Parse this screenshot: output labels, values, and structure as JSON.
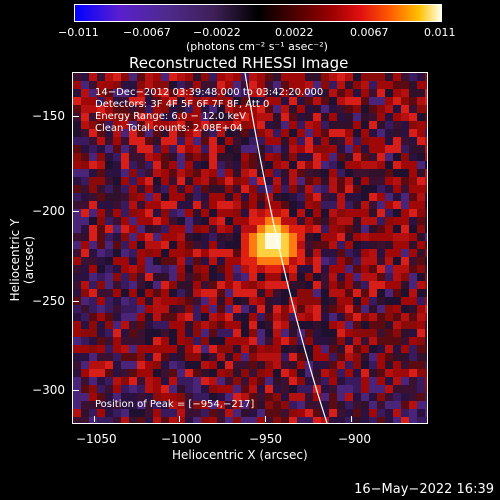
{
  "colorbar": {
    "tick_labels": [
      "−0.011",
      "−0.0067",
      "−0.0022",
      "0.0022",
      "0.0067",
      "0.011"
    ],
    "units": "(photons cm⁻² s⁻¹ asec⁻²)"
  },
  "title": "Reconstructed RHESSI Image",
  "annotation": {
    "line1": "14−Dec−2012 03:39:48.000 to 03:42:20.000",
    "line2": "Detectors: 3F 4F 5F 6F 7F 8F, Att 0",
    "line3": "Energy Range: 6.0 − 12.0 keV",
    "line4": "Clean    Total counts: 2.08E+04",
    "peak": "Position of Peak = [−954,−217]"
  },
  "axes": {
    "xlabel": "Heliocentric X (arcsec)",
    "ylabel": "Heliocentric Y (arcsec)",
    "x_ticks": [
      "−1050",
      "−1000",
      "−950",
      "−900"
    ],
    "y_ticks": [
      "−150",
      "−200",
      "−250",
      "−300"
    ]
  },
  "footer_date": "16−May−2022 16:39"
}
